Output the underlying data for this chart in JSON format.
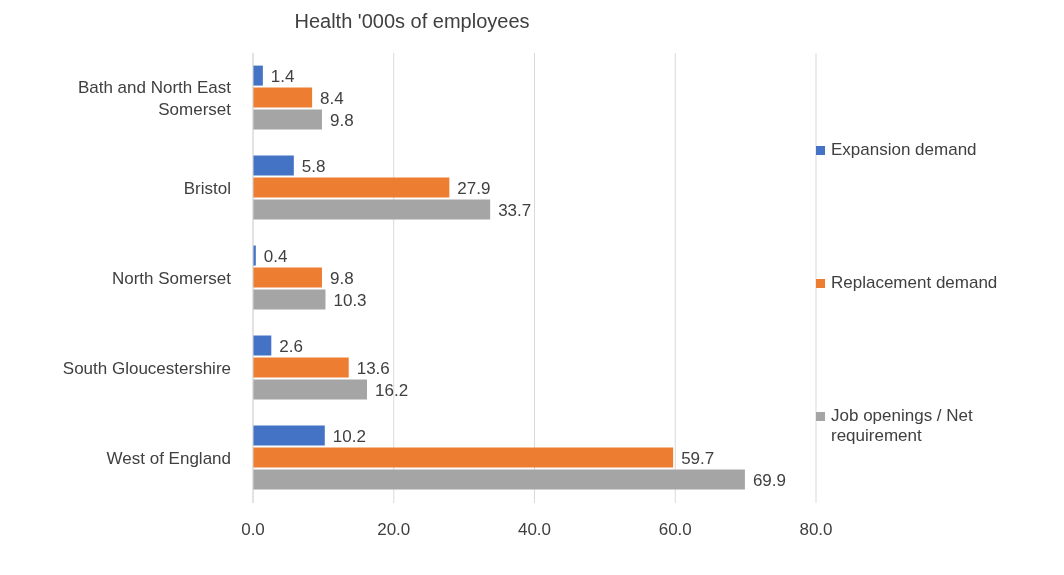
{
  "chart_data": {
    "type": "bar",
    "orientation": "horizontal",
    "title": "Health '000s of employees",
    "categories": [
      "Bath and North East Somerset",
      "Bristol",
      "North Somerset",
      "South Gloucestershire",
      "West of England"
    ],
    "series": [
      {
        "name": "Expansion demand",
        "color": "#4472c4",
        "values": [
          1.4,
          5.8,
          0.4,
          2.6,
          10.2
        ]
      },
      {
        "name": "Replacement demand",
        "color": "#ed7d31",
        "values": [
          8.4,
          27.9,
          9.8,
          13.6,
          59.7
        ]
      },
      {
        "name": "Job openings / Net requirement",
        "color": "#a5a5a5",
        "values": [
          9.8,
          33.7,
          10.3,
          16.2,
          69.9
        ]
      }
    ],
    "xlim": [
      0,
      80
    ],
    "xticks": [
      {
        "value": 0,
        "label": "0.0"
      },
      {
        "value": 20,
        "label": "20.0"
      },
      {
        "value": 40,
        "label": "40.0"
      },
      {
        "value": 60,
        "label": "60.0"
      },
      {
        "value": 80,
        "label": "80.0"
      }
    ],
    "grid": "x",
    "legend": "right",
    "data_labels": true
  }
}
